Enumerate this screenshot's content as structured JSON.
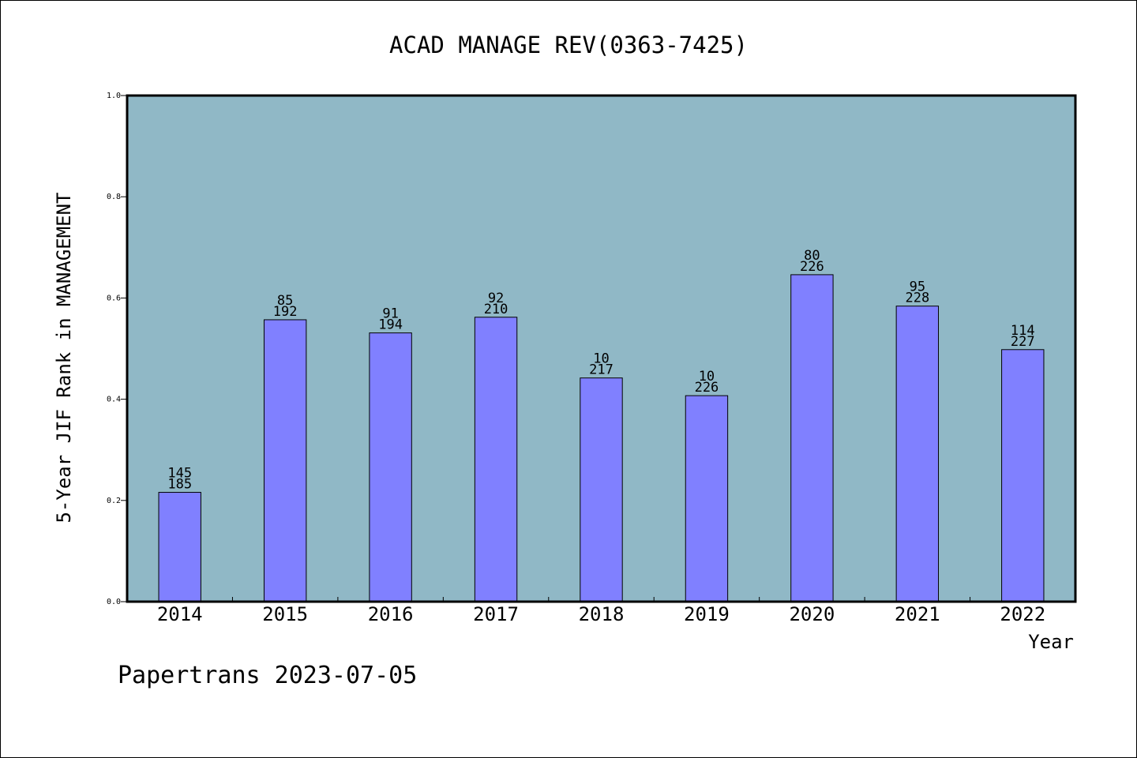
{
  "chart_data": {
    "type": "bar",
    "title": "ACAD MANAGE REV(0363-7425)",
    "xlabel": "Year",
    "ylabel": "5-Year JIF Rank in MANAGEMENT",
    "ylim": [
      0.0,
      1.0
    ],
    "yticks": [
      "0.0",
      "0.2",
      "0.4",
      "0.6",
      "0.8",
      "1.0"
    ],
    "grid": false,
    "categories": [
      "2014",
      "2015",
      "2016",
      "2017",
      "2018",
      "2019",
      "2020",
      "2021",
      "2022"
    ],
    "values": [
      0.216,
      0.557,
      0.531,
      0.562,
      0.442,
      0.407,
      0.646,
      0.584,
      0.498
    ],
    "bar_labels_top": [
      "145",
      "85",
      "91",
      "92",
      "10",
      "10",
      "80",
      "95",
      "114"
    ],
    "bar_labels_bottom": [
      "185",
      "192",
      "194",
      "210",
      "217",
      "226",
      "226",
      "228",
      "227"
    ],
    "colors": {
      "plot_background": "#90b8c6",
      "bar_fill": "#8080ff",
      "bar_stroke": "#000000"
    }
  },
  "footer": {
    "text": "Papertrans 2023-07-05"
  }
}
